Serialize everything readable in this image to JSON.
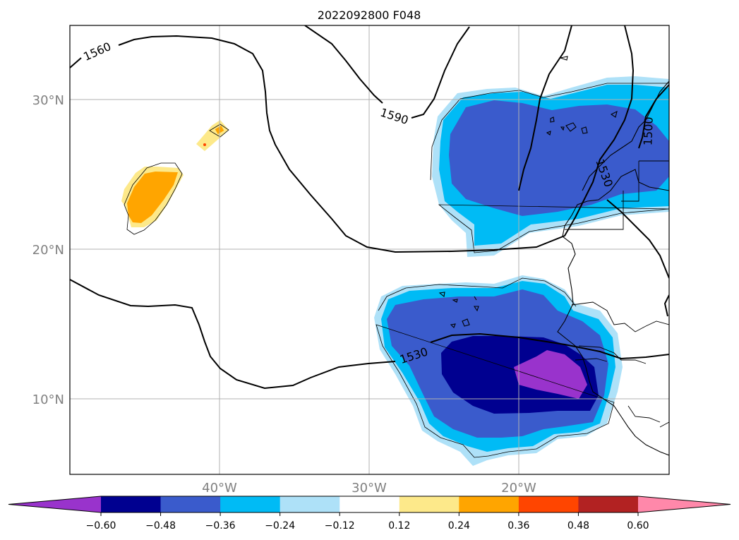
{
  "title": "2022092800 F048",
  "lat_labels": [
    "30°N",
    "20°N",
    "10°N"
  ],
  "lon_labels": [
    "40°W",
    "30°W",
    "20°W"
  ],
  "contour_labels": [
    "1560",
    "1590",
    "1530",
    "1500",
    "1530"
  ],
  "colorbar": {
    "tick_labels": [
      "−0.60",
      "−0.48",
      "−0.36",
      "−0.24",
      "−0.12",
      "0.12",
      "0.24",
      "0.36",
      "0.48",
      "0.60"
    ],
    "colors": [
      "#9933cc",
      "#000090",
      "#3a5bcc",
      "#00bbf5",
      "#aee1f8",
      "#ffffff",
      "#fde98a",
      "#ffa500",
      "#ff4500",
      "#b22222",
      "#ff88aa"
    ],
    "extend": "both"
  },
  "colors": {
    "purple": "#9933cc",
    "navy": "#000090",
    "royal_blue": "#3a5bcc",
    "deep_sky": "#00bbf5",
    "light_blue": "#aee1f8",
    "light_yellow": "#fde98a",
    "orange": "#ffa500",
    "grid": "#b0b0b0",
    "tick_label": "#808080"
  }
}
